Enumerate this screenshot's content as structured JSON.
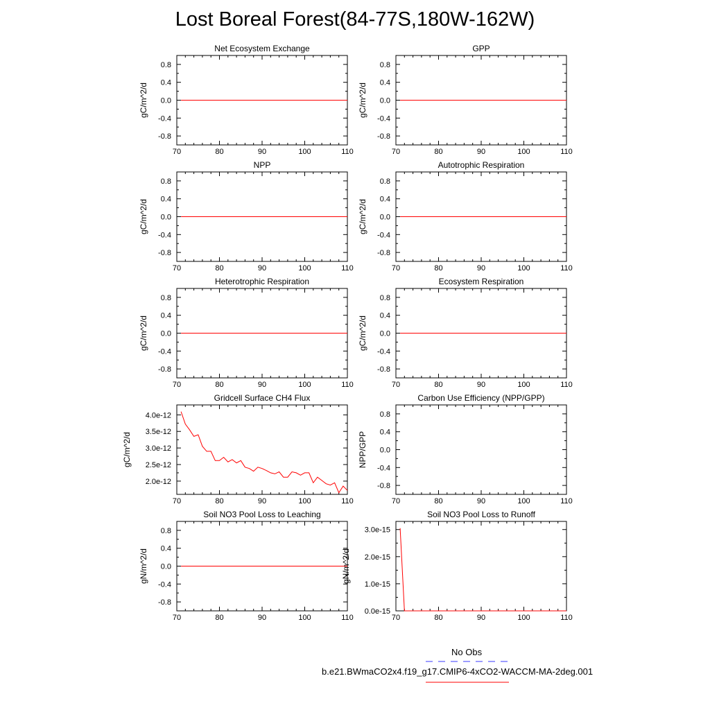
{
  "page": {
    "title": "Lost Boreal Forest(84-77S,180W-162W)"
  },
  "colors": {
    "model_line": "#ff0000",
    "obs_line": "#3a3aff",
    "axis": "#000000",
    "background": "#ffffff"
  },
  "chart_data": [
    {
      "type": "line",
      "title": "Net Ecosystem Exchange",
      "ylabel": "gC/m^2/d",
      "xlabel": "",
      "xlim": [
        70,
        110
      ],
      "ylim": [
        -1.0,
        1.0
      ],
      "x_ticks": [
        "70",
        "80",
        "90",
        "100",
        "110"
      ],
      "y_ticks": [
        "-0.8",
        "-0.4",
        "0.0",
        "0.4",
        "0.8"
      ],
      "y_tick_values": [
        -0.8,
        -0.4,
        0.0,
        0.4,
        0.8
      ],
      "series": [
        {
          "name": "b.e21.BWmaCO2x4.f19_g17.CMIP6-4xCO2-WACCM-MA-2deg.001",
          "x": [
            71,
            110
          ],
          "values": [
            0.0,
            0.0
          ]
        }
      ]
    },
    {
      "type": "line",
      "title": "GPP",
      "ylabel": "gC/m^2/d",
      "xlabel": "",
      "xlim": [
        70,
        110
      ],
      "ylim": [
        -1.0,
        1.0
      ],
      "x_ticks": [
        "70",
        "80",
        "90",
        "100",
        "110"
      ],
      "y_ticks": [
        "-0.8",
        "-0.4",
        "0.0",
        "0.4",
        "0.8"
      ],
      "y_tick_values": [
        -0.8,
        -0.4,
        0.0,
        0.4,
        0.8
      ],
      "series": [
        {
          "name": "b.e21.BWmaCO2x4.f19_g17.CMIP6-4xCO2-WACCM-MA-2deg.001",
          "x": [
            71,
            110
          ],
          "values": [
            0.0,
            0.0
          ]
        }
      ]
    },
    {
      "type": "line",
      "title": "NPP",
      "ylabel": "gC/m^2/d",
      "xlabel": "",
      "xlim": [
        70,
        110
      ],
      "ylim": [
        -1.0,
        1.0
      ],
      "x_ticks": [
        "70",
        "80",
        "90",
        "100",
        "110"
      ],
      "y_ticks": [
        "-0.8",
        "-0.4",
        "0.0",
        "0.4",
        "0.8"
      ],
      "y_tick_values": [
        -0.8,
        -0.4,
        0.0,
        0.4,
        0.8
      ],
      "series": [
        {
          "name": "b.e21.BWmaCO2x4.f19_g17.CMIP6-4xCO2-WACCM-MA-2deg.001",
          "x": [
            71,
            110
          ],
          "values": [
            0.0,
            0.0
          ]
        }
      ]
    },
    {
      "type": "line",
      "title": "Autotrophic Respiration",
      "ylabel": "gC/m^2/d",
      "xlabel": "",
      "xlim": [
        70,
        110
      ],
      "ylim": [
        -1.0,
        1.0
      ],
      "x_ticks": [
        "70",
        "80",
        "90",
        "100",
        "110"
      ],
      "y_ticks": [
        "-0.8",
        "-0.4",
        "0.0",
        "0.4",
        "0.8"
      ],
      "y_tick_values": [
        -0.8,
        -0.4,
        0.0,
        0.4,
        0.8
      ],
      "series": [
        {
          "name": "b.e21.BWmaCO2x4.f19_g17.CMIP6-4xCO2-WACCM-MA-2deg.001",
          "x": [
            71,
            110
          ],
          "values": [
            0.0,
            0.0
          ]
        }
      ]
    },
    {
      "type": "line",
      "title": "Heterotrophic Respiration",
      "ylabel": "gC/m^2/d",
      "xlabel": "",
      "xlim": [
        70,
        110
      ],
      "ylim": [
        -1.0,
        1.0
      ],
      "x_ticks": [
        "70",
        "80",
        "90",
        "100",
        "110"
      ],
      "y_ticks": [
        "-0.8",
        "-0.4",
        "0.0",
        "0.4",
        "0.8"
      ],
      "y_tick_values": [
        -0.8,
        -0.4,
        0.0,
        0.4,
        0.8
      ],
      "series": [
        {
          "name": "b.e21.BWmaCO2x4.f19_g17.CMIP6-4xCO2-WACCM-MA-2deg.001",
          "x": [
            71,
            110
          ],
          "values": [
            0.0,
            0.0
          ]
        }
      ]
    },
    {
      "type": "line",
      "title": "Ecosystem Respiration",
      "ylabel": "gC/m^2/d",
      "xlabel": "",
      "xlim": [
        70,
        110
      ],
      "ylim": [
        -1.0,
        1.0
      ],
      "x_ticks": [
        "70",
        "80",
        "90",
        "100",
        "110"
      ],
      "y_ticks": [
        "-0.8",
        "-0.4",
        "0.0",
        "0.4",
        "0.8"
      ],
      "y_tick_values": [
        -0.8,
        -0.4,
        0.0,
        0.4,
        0.8
      ],
      "series": [
        {
          "name": "b.e21.BWmaCO2x4.f19_g17.CMIP6-4xCO2-WACCM-MA-2deg.001",
          "x": [
            71,
            110
          ],
          "values": [
            0.0,
            0.0
          ]
        }
      ]
    },
    {
      "type": "line",
      "title": "Gridcell Surface CH4 Flux",
      "ylabel": "gC/m^2/d",
      "xlabel": "",
      "xlim": [
        70,
        110
      ],
      "ylim": [
        1.6e-12,
        4.3e-12
      ],
      "x_ticks": [
        "70",
        "80",
        "90",
        "100",
        "110"
      ],
      "y_ticks": [
        "2.0e-12",
        "2.5e-12",
        "3.0e-12",
        "3.5e-12",
        "4.0e-12"
      ],
      "y_tick_values": [
        2e-12,
        2.5e-12,
        3e-12,
        3.5e-12,
        4e-12
      ],
      "series": [
        {
          "name": "b.e21.BWmaCO2x4.f19_g17.CMIP6-4xCO2-WACCM-MA-2deg.001",
          "x": [
            71,
            72,
            73,
            74,
            75,
            76,
            77,
            78,
            79,
            80,
            81,
            82,
            83,
            84,
            85,
            86,
            87,
            88,
            89,
            90,
            91,
            92,
            93,
            94,
            95,
            96,
            97,
            98,
            99,
            100,
            101,
            102,
            103,
            104,
            105,
            106,
            107,
            108,
            109,
            110
          ],
          "values": [
            4.1e-12,
            3.72e-12,
            3.55e-12,
            3.35e-12,
            3.4e-12,
            3.05e-12,
            2.9e-12,
            2.9e-12,
            2.62e-12,
            2.62e-12,
            2.72e-12,
            2.58e-12,
            2.65e-12,
            2.55e-12,
            2.62e-12,
            2.42e-12,
            2.38e-12,
            2.3e-12,
            2.42e-12,
            2.38e-12,
            2.32e-12,
            2.25e-12,
            2.22e-12,
            2.28e-12,
            2.12e-12,
            2.12e-12,
            2.28e-12,
            2.25e-12,
            2.18e-12,
            2.25e-12,
            2.25e-12,
            1.95e-12,
            2.12e-12,
            2.02e-12,
            1.92e-12,
            1.88e-12,
            1.95e-12,
            1.65e-12,
            1.85e-12,
            1.72e-12
          ]
        }
      ]
    },
    {
      "type": "line",
      "title": "Carbon Use Efficiency (NPP/GPP)",
      "ylabel": "NPP/GPP",
      "xlabel": "",
      "xlim": [
        70,
        110
      ],
      "ylim": [
        -1.0,
        1.0
      ],
      "x_ticks": [
        "70",
        "80",
        "90",
        "100",
        "110"
      ],
      "y_ticks": [
        "-0.8",
        "-0.4",
        "0.0",
        "0.4",
        "0.8"
      ],
      "y_tick_values": [
        -0.8,
        -0.4,
        0.0,
        0.4,
        0.8
      ],
      "series": []
    },
    {
      "type": "line",
      "title": "Soil NO3 Pool Loss to Leaching",
      "ylabel": "gN/m^2/d",
      "xlabel": "",
      "xlim": [
        70,
        110
      ],
      "ylim": [
        -1.0,
        1.0
      ],
      "x_ticks": [
        "70",
        "80",
        "90",
        "100",
        "110"
      ],
      "y_ticks": [
        "-0.8",
        "-0.4",
        "0.0",
        "0.4",
        "0.8"
      ],
      "y_tick_values": [
        -0.8,
        -0.4,
        0.0,
        0.4,
        0.8
      ],
      "series": [
        {
          "name": "b.e21.BWmaCO2x4.f19_g17.CMIP6-4xCO2-WACCM-MA-2deg.001",
          "x": [
            71,
            110
          ],
          "values": [
            0.0,
            0.0
          ]
        }
      ]
    },
    {
      "type": "line",
      "title": "Soil NO3 Pool Loss to Runoff",
      "ylabel": "gN/m^2/d",
      "xlabel": "",
      "xlim": [
        70,
        110
      ],
      "ylim": [
        0.0,
        3.3e-15
      ],
      "x_ticks": [
        "70",
        "80",
        "90",
        "100",
        "110"
      ],
      "y_ticks": [
        "0.0e-15",
        "1.0e-15",
        "2.0e-15",
        "3.0e-15"
      ],
      "y_tick_values": [
        0.0,
        1e-15,
        2e-15,
        3e-15
      ],
      "series": [
        {
          "name": "b.e21.BWmaCO2x4.f19_g17.CMIP6-4xCO2-WACCM-MA-2deg.001",
          "x": [
            71,
            72,
            110
          ],
          "values": [
            3.05e-15,
            0.0,
            0.0
          ]
        }
      ]
    }
  ],
  "legend": {
    "obs_label": "No Obs",
    "model_label": "b.e21.BWmaCO2x4.f19_g17.CMIP6-4xCO2-WACCM-MA-2deg.001"
  }
}
